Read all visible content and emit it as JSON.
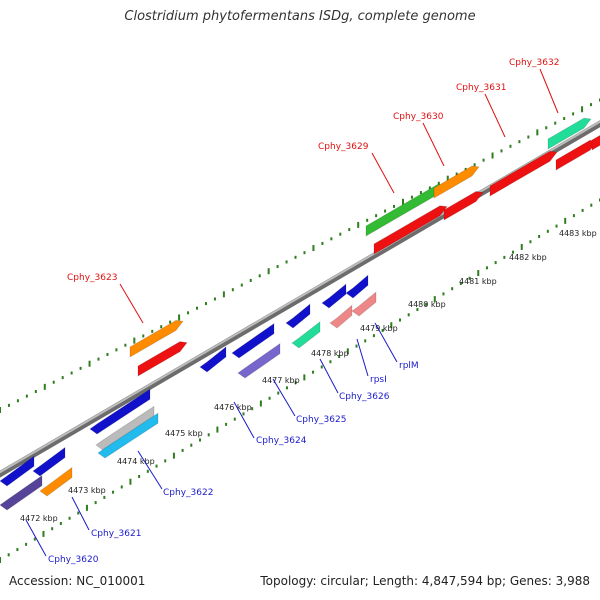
{
  "title": "Clostridium phytofermentans ISDg, complete genome",
  "footer": {
    "accession": "Accession: NC_010001",
    "summary": "Topology: circular; Length: 4,847,594 bp; Genes: 3,988"
  },
  "colors": {
    "backbone": "#8a8a8a",
    "ticks": "#2e7d1e",
    "label_forward": "#e01010",
    "label_reverse": "#1a1acc"
  },
  "kbp_ticks": [
    "4472 kbp",
    "4473 kbp",
    "4474 kbp",
    "4475 kbp",
    "4476 kbp",
    "4477 kbp",
    "4478 kbp",
    "4479 kbp",
    "4480 kbp",
    "4481 kbp",
    "4482 kbp",
    "4483 kbp"
  ],
  "gene_labels_forward": [
    "Cphy_3623",
    "Cphy_3629",
    "Cphy_3630",
    "Cphy_3631",
    "Cphy_3632"
  ],
  "gene_labels_reverse": [
    "Cphy_3620",
    "Cphy_3621",
    "Cphy_3622",
    "Cphy_3624",
    "Cphy_3625",
    "Cphy_3626",
    "rpsI",
    "rplM"
  ]
}
